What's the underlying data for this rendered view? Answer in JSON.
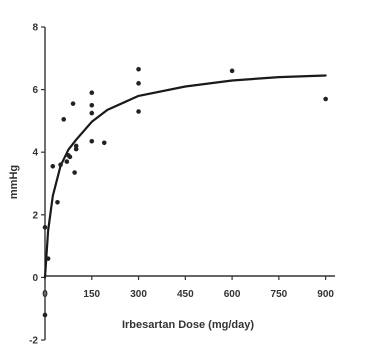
{
  "chart_data": {
    "type": "scatter",
    "title": "",
    "xlabel": "Irbesartan Dose (mg/day)",
    "ylabel": "mmHg",
    "xlim": [
      0,
      930
    ],
    "ylim": [
      -2,
      8
    ],
    "xticks": [
      0,
      150,
      300,
      450,
      600,
      750,
      900
    ],
    "yticks": [
      -2,
      0,
      2,
      4,
      6,
      8
    ],
    "grid": false,
    "legend": "none",
    "colors": {
      "points": "#222222",
      "curve": "#1a1a1a",
      "axis": "#333333"
    },
    "series": [
      {
        "type": "scatter",
        "x": [
          0,
          0,
          10,
          25,
          40,
          50,
          60,
          70,
          75,
          80,
          90,
          95,
          100,
          100,
          150,
          150,
          150,
          150,
          190,
          300,
          300,
          300,
          600,
          900
        ],
        "y": [
          -1.2,
          1.6,
          0.6,
          3.55,
          2.4,
          3.6,
          5.05,
          3.7,
          3.9,
          3.85,
          5.55,
          3.35,
          4.1,
          4.2,
          5.9,
          5.5,
          5.25,
          4.35,
          4.3,
          6.65,
          6.2,
          5.3,
          6.6,
          5.7
        ]
      },
      {
        "type": "line",
        "x": [
          0,
          10,
          25,
          50,
          75,
          100,
          150,
          200,
          300,
          450,
          600,
          750,
          900
        ],
        "y": [
          0,
          1.49,
          2.6,
          3.57,
          4.08,
          4.4,
          4.97,
          5.35,
          5.8,
          6.1,
          6.29,
          6.4,
          6.45
        ]
      }
    ]
  }
}
